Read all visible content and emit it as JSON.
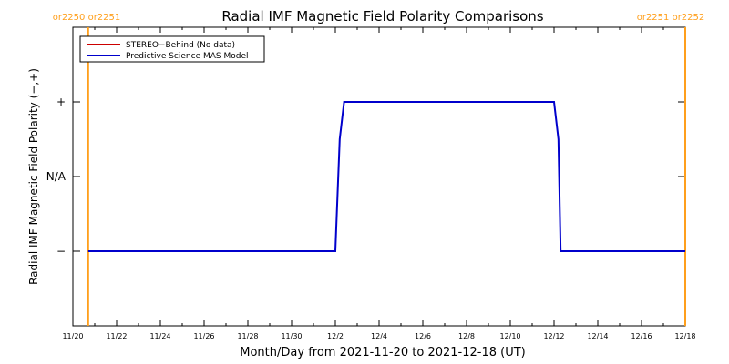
{
  "chart_data": {
    "type": "line",
    "title": "Radial IMF Magnetic Field Polarity Comparisons",
    "xlabel": "Month/Day from 2021-11-20 to 2021-12-18 (UT)",
    "ylabel": "Radial IMF Magnetic Field Polarity (−,+)",
    "x_tick_labels": [
      "11/20",
      "11/22",
      "11/24",
      "11/26",
      "11/28",
      "11/30",
      "12/2",
      "12/4",
      "12/6",
      "12/8",
      "12/10",
      "12/12",
      "12/14",
      "12/16",
      "12/18"
    ],
    "x_tick_values": [
      0,
      2,
      4,
      6,
      8,
      10,
      12,
      14,
      16,
      18,
      20,
      22,
      24,
      26,
      28
    ],
    "xlim": [
      0,
      28
    ],
    "y_categories": [
      "−",
      "N/A",
      "+"
    ],
    "y_category_values": [
      -1,
      0,
      1
    ],
    "ylim": [
      -2,
      2
    ],
    "legend": {
      "placement": "top-left"
    },
    "series": [
      {
        "name": "STEREO−Behind (No data)",
        "color": "#cc0000",
        "x": [],
        "y": []
      },
      {
        "name": "Predictive Science MAS Model",
        "color": "#0000cc",
        "x": [
          0.7,
          12.0,
          12.2,
          12.4,
          22.0,
          22.2,
          22.3,
          28.0
        ],
        "y": [
          -1,
          -1,
          0.5,
          1,
          1,
          0.5,
          -1,
          -1
        ]
      }
    ],
    "vertical_markers": [
      {
        "x": 0.7,
        "label": "or2250 or2251",
        "color": "#ff9f1c"
      },
      {
        "x": 28.0,
        "label": "or2251 or2252",
        "color": "#ff9f1c"
      }
    ]
  }
}
